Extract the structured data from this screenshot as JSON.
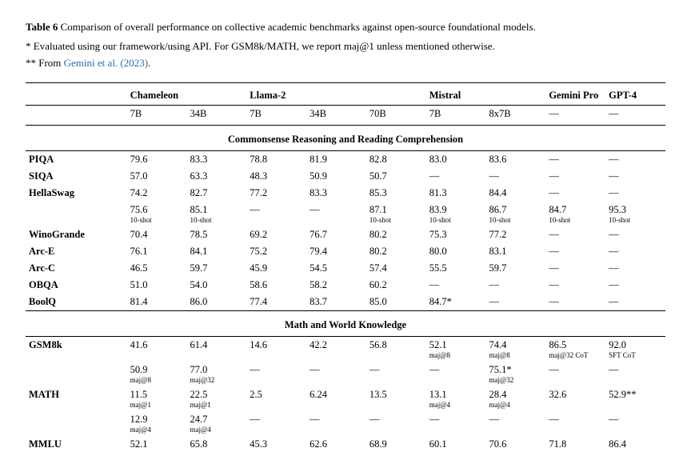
{
  "caption": {
    "label": "Table 6",
    "text": "Comparison of overall performance on collective academic benchmarks against open-source foundational models."
  },
  "footnotes": {
    "f1": "* Evaluated using our framework/using API. For GSM8k/MATH, we report maj@1 unless mentioned otherwise.",
    "f2_prefix": "** From ",
    "f2_link": "Gemini et al. (2023)",
    "f2_suffix": "."
  },
  "models": {
    "chameleon": "Chameleon",
    "llama2": "Llama-2",
    "mistral": "Mistral",
    "gemini": "Gemini Pro",
    "gpt4": "GPT-4"
  },
  "sizes": {
    "c7b": "7B",
    "c34b": "34B",
    "l7b": "7B",
    "l34b": "34B",
    "l70b": "70B",
    "m7b": "7B",
    "m8x7b": "8x7B",
    "dash": "—"
  },
  "sections": {
    "s1": "Commonsense Reasoning and Reading Comprehension",
    "s2": "Math and World Knowledge"
  },
  "rows": {
    "piqa": {
      "label": "PIQA",
      "v": [
        "79.6",
        "83.3",
        "78.8",
        "81.9",
        "82.8",
        "83.0",
        "83.6",
        "—",
        "—"
      ]
    },
    "siqa": {
      "label": "SIQA",
      "v": [
        "57.0",
        "63.3",
        "48.3",
        "50.9",
        "50.7",
        "—",
        "—",
        "—",
        "—"
      ]
    },
    "hella": {
      "label": "HellaSwag",
      "v": [
        "74.2",
        "82.7",
        "77.2",
        "83.3",
        "85.3",
        "81.3",
        "84.4",
        "—",
        "—"
      ]
    },
    "hella2": {
      "v": [
        "75.6",
        "85.1",
        "—",
        "—",
        "87.1",
        "83.9",
        "86.7",
        "84.7",
        "95.3"
      ],
      "sub": [
        "10-shot",
        "10-shot",
        "",
        "",
        "10-shot",
        "10-shot",
        "10-shot",
        "10-shot",
        "10-shot"
      ]
    },
    "wino": {
      "label": "WinoGrande",
      "v": [
        "70.4",
        "78.5",
        "69.2",
        "76.7",
        "80.2",
        "75.3",
        "77.2",
        "—",
        "—"
      ]
    },
    "arce": {
      "label": "Arc-E",
      "v": [
        "76.1",
        "84.1",
        "75.2",
        "79.4",
        "80.2",
        "80.0",
        "83.1",
        "—",
        "—"
      ]
    },
    "arcc": {
      "label": "Arc-C",
      "v": [
        "46.5",
        "59.7",
        "45.9",
        "54.5",
        "57.4",
        "55.5",
        "59.7",
        "—",
        "—"
      ]
    },
    "obqa": {
      "label": "OBQA",
      "v": [
        "51.0",
        "54.0",
        "58.6",
        "58.2",
        "60.2",
        "—",
        "—",
        "—",
        "—"
      ]
    },
    "boolq": {
      "label": "BoolQ",
      "v": [
        "81.4",
        "86.0",
        "77.4",
        "83.7",
        "85.0",
        "84.7*",
        "—",
        "—",
        "—"
      ]
    },
    "gsm8k": {
      "label": "GSM8k",
      "v": [
        "41.6",
        "61.4",
        "14.6",
        "42.2",
        "56.8",
        "52.1",
        "74.4",
        "86.5",
        "92.0"
      ],
      "sub": [
        "",
        "",
        "",
        "",
        "",
        "maj@8",
        "maj@8",
        "maj@32 CoT",
        "SFT CoT"
      ]
    },
    "gsm8k2": {
      "v": [
        "50.9",
        "77.0",
        "—",
        "—",
        "—",
        "—",
        "75.1*",
        "—",
        "—"
      ],
      "sub": [
        "maj@8",
        "maj@32",
        "",
        "",
        "",
        "",
        "maj@32",
        "",
        ""
      ]
    },
    "math": {
      "label": "MATH",
      "v": [
        "11.5",
        "22.5",
        "2.5",
        "6.24",
        "13.5",
        "13.1",
        "28.4",
        "32.6",
        "52.9**"
      ],
      "sub": [
        "maj@1",
        "maj@1",
        "",
        "",
        "",
        "maj@4",
        "maj@4",
        "",
        ""
      ]
    },
    "math2": {
      "v": [
        "12.9",
        "24.7",
        "—",
        "—",
        "—",
        "—",
        "—",
        "—",
        "—"
      ],
      "sub": [
        "maj@4",
        "maj@4",
        "",
        "",
        "",
        "",
        "",
        "",
        ""
      ]
    },
    "mmlu": {
      "label": "MMLU",
      "v": [
        "52.1",
        "65.8",
        "45.3",
        "62.6",
        "68.9",
        "60.1",
        "70.6",
        "71.8",
        "86.4"
      ]
    }
  }
}
